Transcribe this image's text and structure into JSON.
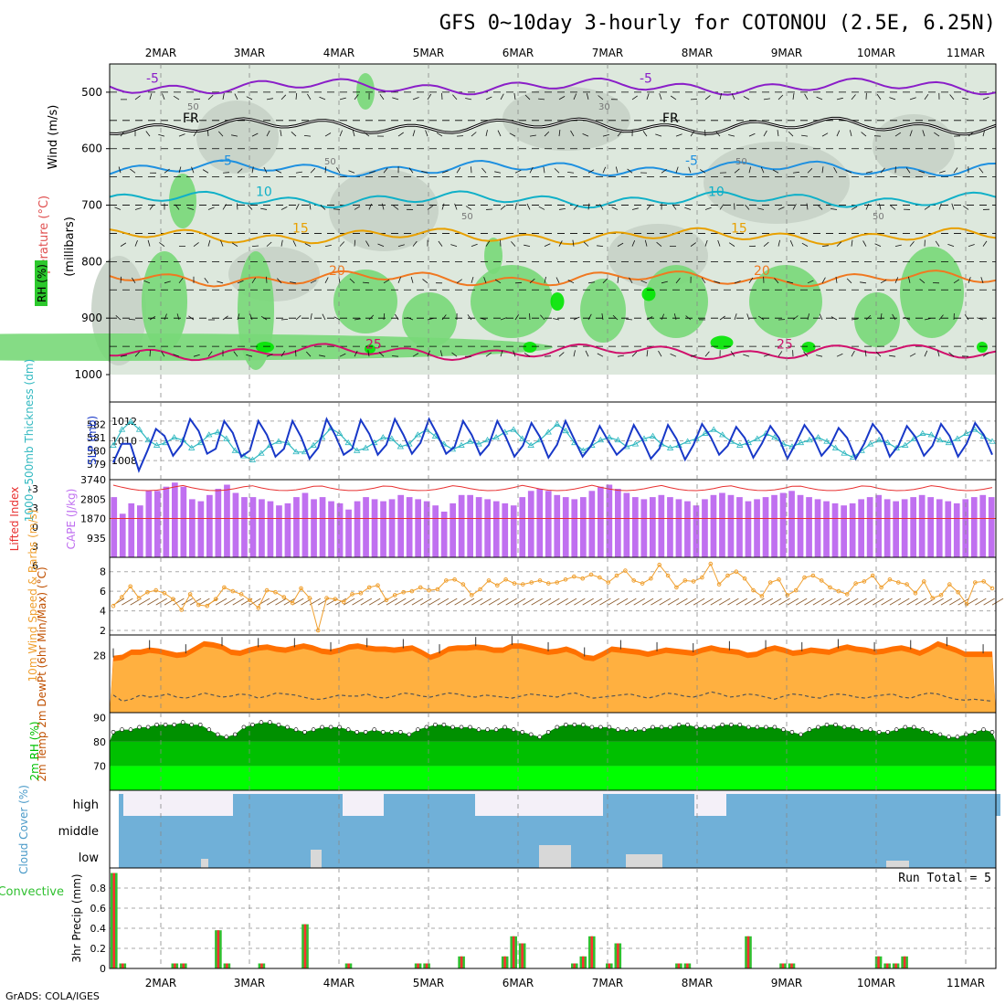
{
  "title": "GFS 0~10day 3-hourly for COTONOU (2.5E, 6.25N)",
  "credit": "GrADS: COLA/IGES",
  "dates": [
    "2MAR",
    "3MAR",
    "4MAR",
    "5MAR",
    "6MAR",
    "7MAR",
    "8MAR",
    "9MAR",
    "10MAR",
    "11MAR"
  ],
  "colors": {
    "purple": "#8a1ec8",
    "black": "#000000",
    "blue": "#1e90e0",
    "cyan": "#10b0c8",
    "orange": "#e8a000",
    "darkorange": "#f07820",
    "magenta": "#d0106c",
    "green": "#1ca81c",
    "rh_light": "#78d878",
    "rh_mid": "#2cc82c",
    "rh_bright": "#00e600",
    "gray1": "#c6d2c6",
    "gray2": "#dde8dd",
    "sky": "#70b0d8",
    "slp": "#1838c8",
    "thick": "#30b8c0",
    "cape": "#c070f0",
    "li": "#e83030",
    "wind10": "#f0a030",
    "temp": "#ff7000",
    "dew": "#ffb040",
    "rh2": "#00c000",
    "precip_total": "#30c030",
    "precip_conv": "#ff3030"
  },
  "chart_data": [
    {
      "type": "heatmap",
      "name": "upper-air",
      "ylabel_wind": "Wind (m/s)",
      "ylabel_temp": "Temperature (°C)",
      "ylabel_rh": "RH (%)",
      "ylabel_units": "(millibars)",
      "ylim": [
        1000,
        450
      ],
      "yticks": [
        500,
        600,
        700,
        800,
        900,
        1000
      ],
      "isotherms": [
        {
          "label": "-5",
          "level": 490,
          "color": "purple"
        },
        {
          "label": "FR",
          "level": 560,
          "color": "black"
        },
        {
          "label": "-5",
          "level": 635,
          "color": "blue"
        },
        {
          "label": "10",
          "level": 690,
          "color": "cyan"
        },
        {
          "label": "15",
          "level": 755,
          "color": "orange"
        },
        {
          "label": "20",
          "level": 830,
          "color": "darkorange"
        },
        {
          "label": "25",
          "level": 960,
          "color": "magenta"
        }
      ],
      "contour_labels": [
        "50",
        "50",
        "50",
        "30",
        "50",
        "50"
      ]
    },
    {
      "type": "line",
      "name": "slp-thickness",
      "ylabel_left": "1000~500mb Thickness (dm)",
      "ylabel_right": "SLP (mb)",
      "thickness_ticks": [
        579,
        580,
        581,
        582
      ],
      "slp_ticks": [
        1008,
        1010,
        1012
      ],
      "series": [
        {
          "name": "SLP (mb)",
          "values": [
            1007.8,
            1009.7,
            1009.7,
            1007.0,
            1009.0,
            1011.2,
            1010.5,
            1008.5,
            1009.6,
            1012.2,
            1011.0,
            1008.7,
            1009.2,
            1012.0,
            1010.8,
            1008.4,
            1009.0,
            1012.0,
            1010.6,
            1008.4,
            1009.2,
            1012.0,
            1010.4,
            1008.2,
            1009.3,
            1012.2,
            1010.6,
            1008.6,
            1009.2,
            1012.1,
            1010.7,
            1008.6,
            1009.6,
            1012.2,
            1010.6,
            1008.7,
            1009.8,
            1012.2,
            1010.6,
            1008.7,
            1009.4,
            1012.0,
            1010.6,
            1008.6,
            1009.6,
            1012.0,
            1010.4,
            1008.4,
            1009.5,
            1011.8,
            1010.4,
            1008.3,
            1009.6,
            1012.0,
            1010.2,
            1008.4,
            1009.5,
            1011.5,
            1010.0,
            1008.6,
            1009.4,
            1011.6,
            1010.1,
            1008.2,
            1009.2,
            1011.6,
            1010.2,
            1008.1,
            1009.6,
            1011.7,
            1010.4,
            1008.6,
            1009.5,
            1011.4,
            1010.3,
            1008.3,
            1009.7,
            1011.5,
            1010.3,
            1008.2,
            1009.8,
            1011.6,
            1010.4,
            1008.5,
            1009.5,
            1011.3,
            1010.3,
            1008.2,
            1009.7,
            1011.7,
            1010.6,
            1008.4,
            1009.5,
            1011.5,
            1010.4,
            1008.5,
            1009.5,
            1011.7,
            1010.5,
            1008.4,
            1009.7,
            1011.8,
            1010.6,
            1008.6
          ]
        },
        {
          "name": "Thickness (dm)",
          "values": [
            580.4,
            581.6,
            582.2,
            581.6,
            580.8,
            580.4,
            580.6,
            581.0,
            580.8,
            580.2,
            580.6,
            581.2,
            581.4,
            580.9,
            580.0,
            579.6,
            579.3,
            579.8,
            580.4,
            580.7,
            580.6,
            579.9,
            579.9,
            580.4,
            581.0,
            581.7,
            581.3,
            580.6,
            580.0,
            580.2,
            580.6,
            581.0,
            580.9,
            580.3,
            580.5,
            581.2,
            581.6,
            581.1,
            580.5,
            580.1,
            580.4,
            580.7,
            580.5,
            580.8,
            581.0,
            581.4,
            581.6,
            580.9,
            580.4,
            580.8,
            581.4,
            582.0,
            581.5,
            580.6,
            580.0,
            580.4,
            580.8,
            581.0,
            580.8,
            580.3,
            580.5,
            580.9,
            581.1,
            580.5,
            580.2,
            580.4,
            580.7,
            580.9,
            581.3,
            581.6,
            581.2,
            580.7,
            580.4,
            580.6,
            580.9,
            581.3,
            581.0,
            580.5,
            580.3,
            580.6,
            580.8,
            581.0,
            580.7,
            580.2,
            579.8,
            579.5,
            580.0,
            580.5,
            580.8,
            580.6,
            580.2,
            580.4,
            580.9,
            581.3,
            581.2,
            580.8,
            580.6,
            580.9,
            581.3,
            581.6,
            581.1,
            580.7
          ]
        }
      ]
    },
    {
      "type": "bar",
      "name": "cape-lifted-index",
      "ylabel_left": "Lifted Index",
      "ylabel_right": "CAPE (J/kg)",
      "li_ticks": [
        "-3",
        "-3",
        "0",
        "3",
        "6"
      ],
      "cape_ticks": [
        3740,
        2805,
        1870,
        935
      ],
      "cape_max": 3740,
      "series": [
        {
          "name": "CAPE (J/kg)",
          "values": [
            2900,
            2100,
            2600,
            2500,
            3200,
            3200,
            3400,
            3600,
            3400,
            2800,
            2700,
            3000,
            3300,
            3500,
            3100,
            2900,
            2900,
            2800,
            2700,
            2500,
            2600,
            2900,
            3100,
            2800,
            2900,
            2700,
            2600,
            2300,
            2700,
            2900,
            2800,
            2700,
            2800,
            3000,
            2900,
            2800,
            2700,
            2500,
            2200,
            2600,
            3000,
            3000,
            2900,
            2800,
            2700,
            2600,
            2500,
            2900,
            3200,
            3300,
            3200,
            3000,
            2900,
            2800,
            2900,
            3200,
            3400,
            3500,
            3300,
            3100,
            2900,
            2800,
            2900,
            3000,
            2900,
            2800,
            2700,
            2500,
            2800,
            3000,
            3100,
            3000,
            2900,
            2700,
            2800,
            2900,
            3000,
            3100,
            3200,
            3000,
            2900,
            2800,
            2700,
            2600,
            2500,
            2600,
            2800,
            2900,
            3000,
            2800,
            2700,
            2800,
            2900,
            3000,
            2900,
            2800,
            2700,
            2600,
            2800,
            2900,
            3000,
            2900
          ]
        }
      ]
    },
    {
      "type": "line",
      "name": "wind10m",
      "ylabel": "10m Wind Speed & Barbs (m/s)",
      "yticks": [
        2,
        4,
        6,
        8
      ],
      "series": [
        {
          "name": "Speed (m/s)",
          "values": [
            4.5,
            5.4,
            6.5,
            5.3,
            5.9,
            6.1,
            5.8,
            5.2,
            4.1,
            5.7,
            4.6,
            4.5,
            5.2,
            6.4,
            6.0,
            5.7,
            5.1,
            4.3,
            6.1,
            5.9,
            5.4,
            4.8,
            6.3,
            5.3,
            2.0,
            5.3,
            5.2,
            4.9,
            5.7,
            5.8,
            6.4,
            6.6,
            5.1,
            5.6,
            5.9,
            6.0,
            6.4,
            6.1,
            6.2,
            7.1,
            7.2,
            6.7,
            5.6,
            6.2,
            7.1,
            6.6,
            7.2,
            6.8,
            6.7,
            6.9,
            7.1,
            6.8,
            6.9,
            7.2,
            7.5,
            7.3,
            7.7,
            7.4,
            6.9,
            7.6,
            8.1,
            7.1,
            6.8,
            7.3,
            8.7,
            7.6,
            6.4,
            7.1,
            7.0,
            7.4,
            8.8,
            6.7,
            7.6,
            8.0,
            7.3,
            6.1,
            5.5,
            6.9,
            7.2,
            5.6,
            6.1,
            7.4,
            7.6,
            7.1,
            6.4,
            6.0,
            5.7,
            6.8,
            7.0,
            7.6,
            6.4,
            7.2,
            6.9,
            6.7,
            5.8,
            7.0,
            5.3,
            5.6,
            6.7,
            5.9,
            4.7,
            6.9,
            7.0,
            6.3
          ]
        }
      ]
    },
    {
      "type": "area",
      "name": "temp-dewpoint",
      "ylabel": "2m Temp 2m DewPt (6hr Min/Max) (°C)",
      "yticks": [
        28
      ],
      "series": [
        {
          "name": "2m Temp (°C)",
          "values": [
            28.0,
            28.1,
            28.6,
            28.6,
            28.8,
            28.7,
            28.5,
            28.3,
            28.4,
            28.9,
            29.4,
            29.3,
            29.1,
            28.6,
            28.5,
            28.8,
            29.0,
            29.1,
            28.9,
            28.8,
            29.0,
            29.2,
            29.0,
            28.7,
            28.6,
            28.8,
            29.1,
            29.2,
            29.0,
            28.9,
            28.9,
            28.8,
            28.9,
            29.0,
            28.6,
            28.1,
            28.4,
            28.9,
            29.0,
            29.0,
            29.1,
            29.0,
            28.8,
            28.8,
            29.2,
            29.2,
            29.0,
            28.8,
            28.6,
            28.7,
            28.9,
            28.6,
            28.1,
            28.0,
            28.4,
            28.9,
            28.8,
            28.7,
            28.6,
            28.4,
            28.6,
            28.8,
            28.7,
            28.6,
            28.5,
            28.8,
            29.0,
            28.8,
            28.7,
            28.6,
            28.3,
            28.4,
            28.8,
            29.0,
            28.8,
            28.5,
            28.6,
            28.8,
            28.7,
            28.6,
            28.9,
            29.1,
            28.9,
            28.8,
            28.6,
            28.7,
            28.9,
            29.0,
            28.8,
            28.5,
            28.9,
            29.4,
            29.1,
            28.8,
            28.4,
            28.4,
            28.4,
            28.4
          ]
        },
        {
          "name": "2m DewPt (°C)",
          "values": [
            24.2,
            23.6,
            23.8,
            24.2,
            24.0,
            24.1,
            24.3,
            24.0,
            23.9,
            24.1,
            24.4,
            24.2,
            24.0,
            24.1,
            24.3,
            24.2,
            23.9,
            24.1,
            24.4,
            24.3,
            24.2,
            24.0,
            23.8,
            23.8,
            24.0,
            24.2,
            24.1,
            24.1,
            24.3,
            24.0,
            23.9,
            24.1,
            24.4,
            24.3,
            24.1,
            24.0,
            24.2,
            24.4,
            24.3,
            24.1,
            24.0,
            24.2,
            24.1,
            24.0,
            23.9,
            24.1,
            24.3,
            24.2,
            24.1,
            24.0,
            24.3,
            24.4,
            24.1,
            23.9,
            24.0,
            24.1,
            24.2,
            24.3,
            24.1,
            23.9,
            24.1,
            24.4,
            24.3,
            24.1,
            24.0,
            24.2,
            24.5,
            24.3,
            24.0,
            24.1,
            24.3,
            24.2,
            24.0,
            23.8,
            24.1,
            24.3,
            24.2,
            24.0,
            23.9,
            24.2,
            24.3,
            24.2,
            24.0,
            23.9,
            24.1,
            24.2,
            24.3,
            24.0,
            23.9,
            24.2,
            24.4,
            24.3,
            24.0,
            23.8,
            23.7,
            23.8,
            23.7,
            23.6
          ]
        }
      ]
    },
    {
      "type": "area",
      "name": "rh2m",
      "ylabel": "2m RH (%)",
      "yticks": [
        70,
        80,
        90
      ],
      "series": [
        {
          "name": "2m RH (%)",
          "values": [
            84,
            85,
            85,
            86,
            86,
            87,
            87,
            87,
            88,
            87,
            87,
            85,
            83,
            82,
            83,
            86,
            87,
            88,
            88,
            87,
            86,
            85,
            84,
            85,
            86,
            86,
            86,
            85,
            84,
            84,
            85,
            84,
            84,
            84,
            83,
            85,
            86,
            87,
            87,
            86,
            86,
            86,
            85,
            85,
            85,
            86,
            85,
            84,
            83,
            82,
            84,
            86,
            87,
            87,
            87,
            86,
            86,
            86,
            85,
            85,
            85,
            85,
            86,
            86,
            86,
            87,
            87,
            86,
            86,
            86,
            87,
            87,
            87,
            86,
            86,
            86,
            86,
            85,
            84,
            83,
            85,
            86,
            87,
            87,
            86,
            86,
            85,
            85,
            84,
            84,
            85,
            86,
            86,
            85,
            84,
            83,
            82,
            82,
            83,
            84,
            85,
            84
          ]
        }
      ]
    },
    {
      "type": "bar",
      "name": "cloud-cover",
      "ylabel": "Cloud Cover (%)",
      "levels": [
        "high",
        "middle",
        "low"
      ]
    },
    {
      "type": "bar",
      "name": "precip",
      "ylabel_left": "Total / Rain Convective",
      "ylabel_right": "3hr Precip (mm)",
      "run_total": "Run Total = 5",
      "yticks": [
        0,
        0.2,
        0.4,
        0.6,
        0.8
      ],
      "series": [
        {
          "name": "Total (mm)",
          "values": [
            0.95,
            0.05,
            0,
            0,
            0,
            0,
            0,
            0.05,
            0.05,
            0,
            0,
            0,
            0.38,
            0.05,
            0,
            0,
            0,
            0.05,
            0,
            0,
            0,
            0,
            0.44,
            0,
            0,
            0,
            0,
            0.05,
            0,
            0,
            0,
            0,
            0,
            0,
            0,
            0.05,
            0.05,
            0,
            0,
            0,
            0.12,
            0,
            0,
            0,
            0,
            0.12,
            0.32,
            0.25,
            0,
            0,
            0,
            0,
            0,
            0.05,
            0.12,
            0.32,
            0,
            0.05,
            0.25,
            0,
            0,
            0,
            0,
            0,
            0,
            0.05,
            0.05,
            0,
            0,
            0,
            0,
            0,
            0,
            0.32,
            0,
            0,
            0,
            0.05,
            0.05,
            0,
            0,
            0,
            0,
            0,
            0,
            0,
            0,
            0,
            0.12,
            0.05,
            0.05,
            0.12,
            0,
            0,
            0,
            0,
            0,
            0,
            0,
            0,
            0,
            0
          ]
        }
      ]
    }
  ]
}
